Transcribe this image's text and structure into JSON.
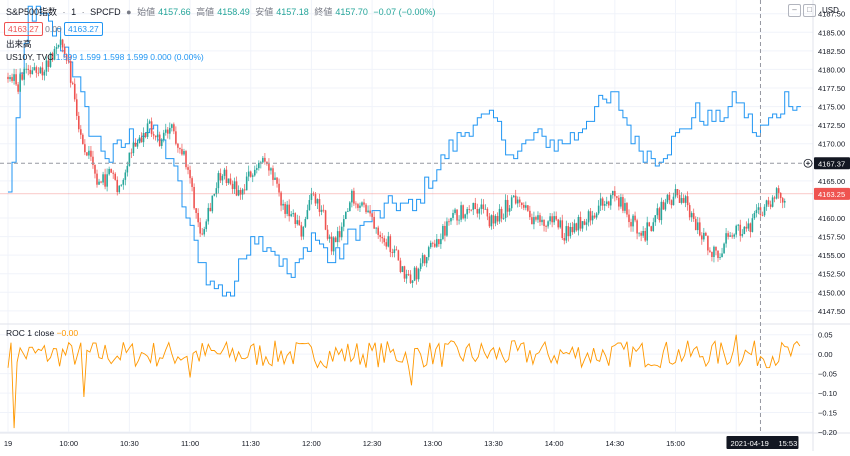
{
  "legend": {
    "symbol": "S&P500指数",
    "interval": "1",
    "source": "SPCFD",
    "open_label": "始値",
    "open": "4157.66",
    "high_label": "高値",
    "high": "4158.49",
    "low_label": "安値",
    "low": "4157.18",
    "close_label": "終値",
    "close": "4157.70",
    "change": "−0.07 (−0.00%)",
    "price_red": "4163.27",
    "zero": "0.00",
    "price_blue": "4163.27",
    "volume_label": "出来高",
    "compare": "US10Y, TVC",
    "compare_values": "1.599  1.599  1.598  1.599  0.000 (0.00%)"
  },
  "roc_legend": {
    "name": "ROC 1 close",
    "value": "−0.00"
  },
  "currency": "USD",
  "crosshair_price": "4167.37",
  "last_price": "4163.25",
  "crosshair_date": "2021-04-19",
  "crosshair_time": "15:53",
  "colors": {
    "up": "#26a69a",
    "down": "#ef5350",
    "compare": "#2196f3",
    "roc": "#ff9800"
  },
  "chart_data": [
    {
      "type": "candlestick",
      "series": [
        {
          "name": "S&P500指数",
          "ohlc_summary": {
            "open": 4157.66,
            "high": 4158.49,
            "low": 4157.18,
            "close": 4157.7
          }
        },
        {
          "name": "US10Y, TVC",
          "type": "line"
        }
      ],
      "price_ticks": [
        4187.5,
        4185.0,
        4182.5,
        4180.0,
        4177.5,
        4175.0,
        4172.5,
        4170.0,
        4165.0,
        4160.0,
        4157.5,
        4155.0,
        4152.5,
        4150.0,
        4147.5
      ],
      "ylim": [
        4146,
        4188
      ],
      "time_ticks": [
        "19",
        "10:00",
        "10:30",
        "11:00",
        "11:30",
        "12:00",
        "12:30",
        "13:00",
        "13:30",
        "14:00",
        "14:30",
        "15:00",
        "15:30"
      ],
      "time_tick_minutes": [
        0,
        30,
        60,
        90,
        120,
        150,
        180,
        210,
        240,
        270,
        300,
        330,
        360
      ],
      "xlim_minutes": [
        0,
        395
      ],
      "price_path": [
        [
          0,
          4179
        ],
        [
          5,
          4178
        ],
        [
          10,
          4180
        ],
        [
          15,
          4179
        ],
        [
          20,
          4181
        ],
        [
          25,
          4184
        ],
        [
          30,
          4181
        ],
        [
          35,
          4172
        ],
        [
          40,
          4168
        ],
        [
          45,
          4164
        ],
        [
          50,
          4166
        ],
        [
          55,
          4164
        ],
        [
          60,
          4169
        ],
        [
          65,
          4171
        ],
        [
          70,
          4172
        ],
        [
          75,
          4170
        ],
        [
          80,
          4172
        ],
        [
          85,
          4170
        ],
        [
          90,
          4165
        ],
        [
          95,
          4158
        ],
        [
          100,
          4162
        ],
        [
          105,
          4166
        ],
        [
          110,
          4165
        ],
        [
          115,
          4163
        ],
        [
          120,
          4166
        ],
        [
          125,
          4168
        ],
        [
          130,
          4166
        ],
        [
          135,
          4162
        ],
        [
          140,
          4160
        ],
        [
          145,
          4158
        ],
        [
          150,
          4163
        ],
        [
          155,
          4161
        ],
        [
          160,
          4156
        ],
        [
          165,
          4158
        ],
        [
          170,
          4163
        ],
        [
          175,
          4162
        ],
        [
          180,
          4160
        ],
        [
          185,
          4158
        ],
        [
          190,
          4156
        ],
        [
          195,
          4153
        ],
        [
          200,
          4152
        ],
        [
          205,
          4154
        ],
        [
          210,
          4156
        ],
        [
          215,
          4158
        ],
        [
          220,
          4160
        ],
        [
          225,
          4161
        ],
        [
          230,
          4162
        ],
        [
          235,
          4161
        ],
        [
          240,
          4159
        ],
        [
          245,
          4161
        ],
        [
          250,
          4163
        ],
        [
          255,
          4161
        ],
        [
          260,
          4160
        ],
        [
          265,
          4159
        ],
        [
          270,
          4160
        ],
        [
          275,
          4158
        ],
        [
          280,
          4159
        ],
        [
          285,
          4160
        ],
        [
          290,
          4161
        ],
        [
          295,
          4162
        ],
        [
          300,
          4163
        ],
        [
          305,
          4161
        ],
        [
          310,
          4159
        ],
        [
          315,
          4158
        ],
        [
          320,
          4160
        ],
        [
          325,
          4162
        ],
        [
          330,
          4163
        ],
        [
          335,
          4162
        ],
        [
          340,
          4159
        ],
        [
          345,
          4157
        ],
        [
          350,
          4155
        ],
        [
          355,
          4157
        ],
        [
          360,
          4159
        ],
        [
          365,
          4158
        ],
        [
          370,
          4160
        ],
        [
          375,
          4162
        ],
        [
          380,
          4163
        ]
      ],
      "compare_path": [
        [
          0,
          4163
        ],
        [
          10,
          4188
        ],
        [
          20,
          4186
        ],
        [
          30,
          4182
        ],
        [
          40,
          4172
        ],
        [
          50,
          4168
        ],
        [
          60,
          4171
        ],
        [
          70,
          4172
        ],
        [
          80,
          4168
        ],
        [
          90,
          4158
        ],
        [
          100,
          4151
        ],
        [
          110,
          4150
        ],
        [
          120,
          4158
        ],
        [
          130,
          4156
        ],
        [
          140,
          4152
        ],
        [
          150,
          4158
        ],
        [
          160,
          4154
        ],
        [
          170,
          4158
        ],
        [
          180,
          4160
        ],
        [
          190,
          4162
        ],
        [
          200,
          4161
        ],
        [
          210,
          4166
        ],
        [
          220,
          4170
        ],
        [
          230,
          4173
        ],
        [
          240,
          4173
        ],
        [
          250,
          4168
        ],
        [
          260,
          4171
        ],
        [
          270,
          4170
        ],
        [
          280,
          4171
        ],
        [
          290,
          4175
        ],
        [
          300,
          4176
        ],
        [
          310,
          4170
        ],
        [
          320,
          4168
        ],
        [
          330,
          4171
        ],
        [
          340,
          4174
        ],
        [
          350,
          4173
        ],
        [
          360,
          4176
        ],
        [
          370,
          4171
        ],
        [
          380,
          4174
        ],
        [
          385,
          4177
        ],
        [
          390,
          4175
        ]
      ]
    },
    {
      "type": "line",
      "series": [
        {
          "name": "ROC 1 close"
        }
      ],
      "ylim": [
        -0.2,
        0.075
      ],
      "ticks": [
        0.05,
        0.0,
        -0.05,
        -0.1,
        -0.15,
        -0.2
      ],
      "tick_labels": [
        "0.05",
        "0.00",
        "−0.05",
        "−0.10",
        "−0.15",
        "−0.20"
      ],
      "values_seed": 7,
      "notable_spikes": [
        [
          3,
          -0.19
        ],
        [
          38,
          -0.11
        ],
        [
          90,
          -0.06
        ],
        [
          200,
          -0.08
        ],
        [
          360,
          0.05
        ]
      ]
    }
  ]
}
